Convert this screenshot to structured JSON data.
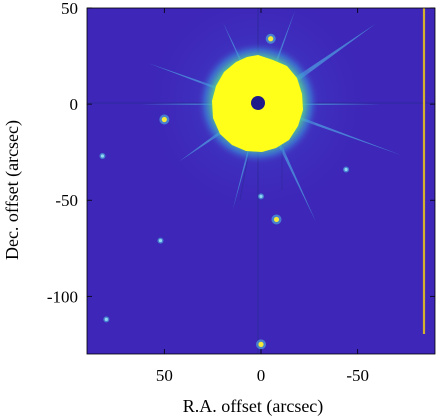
{
  "chart_data": {
    "type": "heatmap",
    "subject": "saturated bright star with diffraction spikes and surrounding point sources",
    "xlabel": "R.A. offset (arcsec)",
    "ylabel": "Dec. offset (arcsec)",
    "xlim": [
      90,
      -90
    ],
    "ylim": [
      -130,
      50
    ],
    "x_ticks": [
      "50",
      "0",
      "-50"
    ],
    "x_tick_values": [
      50,
      0,
      -50
    ],
    "y_ticks": [
      "50",
      "0",
      "-50",
      "-100"
    ],
    "y_tick_values": [
      50,
      0,
      -50,
      -100
    ],
    "colormap": "parula",
    "colors": {
      "background": "#3d26b8",
      "halo_outer": "#3fb5d0",
      "halo_mid": "#a6d24a",
      "saturated": "#ffff1a",
      "core_mask": "#1e1a8a",
      "frame_edge": "#d4b030"
    },
    "bright_star": {
      "x": 0,
      "y": 0
    },
    "point_sources": [
      {
        "x": -5,
        "y": 34
      },
      {
        "x": 50,
        "y": -8
      },
      {
        "x": -8,
        "y": -60
      },
      {
        "x": 0,
        "y": -125
      },
      {
        "x": 80,
        "y": -112
      },
      {
        "x": 82,
        "y": -27
      },
      {
        "x": 52,
        "y": -71
      },
      {
        "x": -44,
        "y": -34
      },
      {
        "x": 0,
        "y": -48
      }
    ]
  }
}
